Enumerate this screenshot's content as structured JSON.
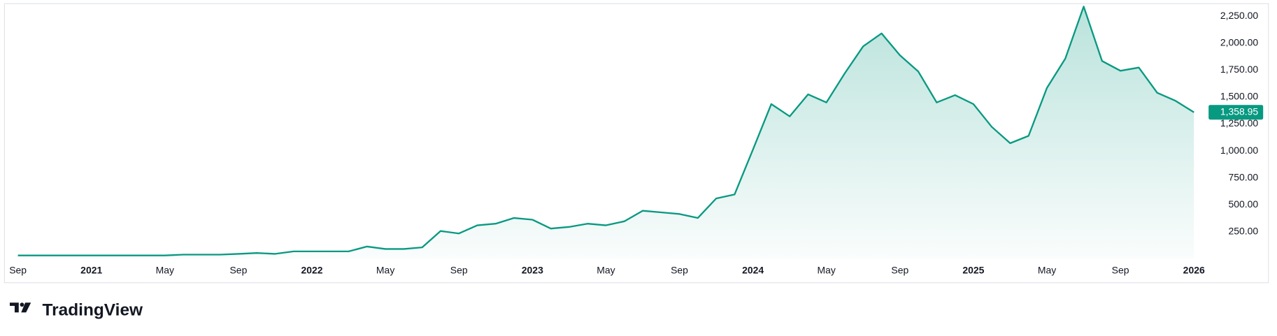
{
  "chart_data": {
    "type": "line",
    "categories": [
      "Sep",
      null,
      null,
      null,
      "2021",
      null,
      null,
      null,
      "May",
      null,
      null,
      null,
      "Sep",
      null,
      null,
      null,
      "2022",
      null,
      null,
      null,
      "May",
      null,
      null,
      null,
      "Sep",
      null,
      null,
      null,
      "2023",
      null,
      null,
      null,
      "May",
      null,
      null,
      null,
      "Sep",
      null,
      null,
      null,
      "2024",
      null,
      null,
      null,
      "May",
      null,
      null,
      null,
      "Sep",
      null,
      null,
      null,
      "2025",
      null,
      null,
      null,
      "May",
      null,
      null,
      null,
      "Sep",
      null,
      null,
      null,
      "2026"
    ],
    "series": [
      {
        "color": "#089981",
        "values": [
          30,
          30,
          30,
          30,
          30,
          30,
          30,
          30,
          30,
          38,
          38,
          38,
          45,
          53,
          45,
          68,
          68,
          68,
          68,
          113,
          90,
          90,
          105,
          257,
          234,
          310,
          325,
          378,
          362,
          280,
          295,
          325,
          310,
          347,
          445,
          430,
          415,
          378,
          559,
          596,
          1012,
          1435,
          1321,
          1525,
          1450,
          1721,
          1971,
          2091,
          1888,
          1737,
          1450,
          1518,
          1435,
          1223,
          1072,
          1140,
          1585,
          1857,
          2340,
          1835,
          1744,
          1774,
          1540,
          1465,
          1358.95
        ],
        "last_value_label": "1,358.95"
      }
    ],
    "ylim": [
      0,
      2363
    ],
    "yticks": [
      {
        "value": 250,
        "label": "250.00"
      },
      {
        "value": 500,
        "label": "500.00"
      },
      {
        "value": 750,
        "label": "750.00"
      },
      {
        "value": 1000,
        "label": "1,000.00"
      },
      {
        "value": 1250,
        "label": "1,250.00"
      },
      {
        "value": 1500,
        "label": "1,500.00"
      },
      {
        "value": 1750,
        "label": "1,750.00"
      },
      {
        "value": 2000,
        "label": "2,000.00"
      },
      {
        "value": 2250,
        "label": "2,250.00"
      }
    ],
    "branding": "TradingView"
  }
}
